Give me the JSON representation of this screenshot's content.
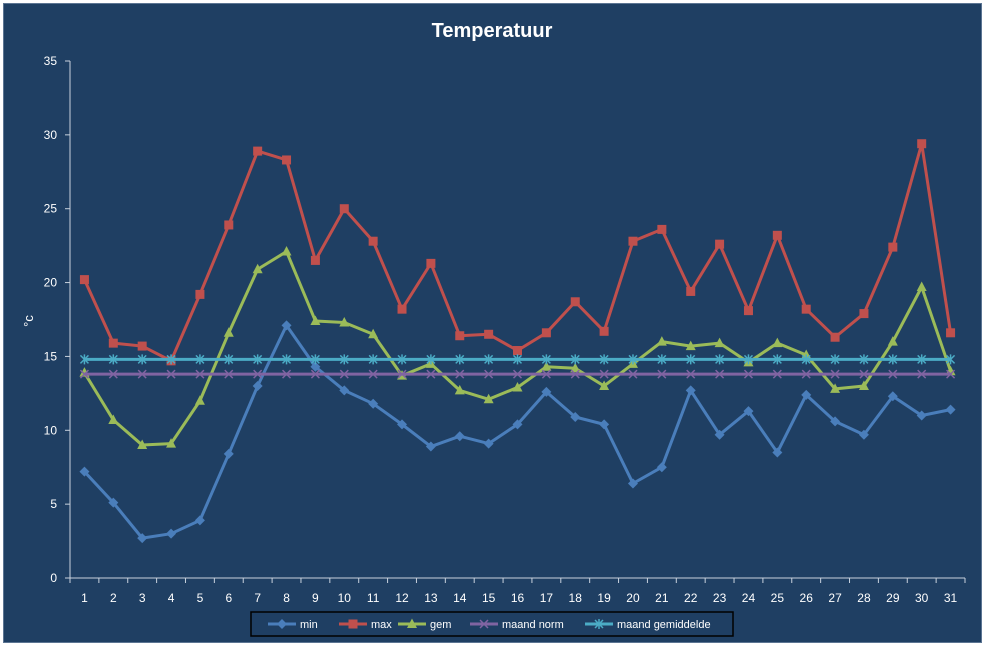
{
  "chart_data": {
    "type": "line",
    "title": "Temperatuur",
    "xlabel": "",
    "ylabel": "°c",
    "ylim": [
      0,
      35
    ],
    "yticks": [
      0,
      5,
      10,
      15,
      20,
      25,
      30,
      35
    ],
    "x": [
      1,
      2,
      3,
      4,
      5,
      6,
      7,
      8,
      9,
      10,
      11,
      12,
      13,
      14,
      15,
      16,
      17,
      18,
      19,
      20,
      21,
      22,
      23,
      24,
      25,
      26,
      27,
      28,
      29,
      30,
      31
    ],
    "grid": false,
    "legend_position": "bottom",
    "series": [
      {
        "name": "min",
        "color": "#4a7ebb",
        "marker": "diamond",
        "values": [
          7.2,
          5.1,
          2.7,
          3.0,
          3.9,
          8.4,
          13.0,
          17.1,
          14.3,
          12.7,
          11.8,
          10.4,
          8.9,
          9.6,
          9.1,
          10.4,
          12.6,
          10.9,
          10.4,
          6.4,
          7.5,
          12.7,
          9.7,
          11.3,
          8.5,
          12.4,
          10.6,
          9.7,
          12.3,
          11.0,
          11.4
        ]
      },
      {
        "name": "max",
        "color": "#c0504d",
        "marker": "square",
        "values": [
          20.2,
          15.9,
          15.7,
          14.7,
          19.2,
          23.9,
          28.9,
          28.3,
          21.5,
          25.0,
          22.8,
          18.2,
          21.3,
          16.4,
          16.5,
          15.4,
          16.6,
          18.7,
          16.7,
          22.8,
          23.6,
          19.4,
          22.6,
          18.1,
          23.2,
          18.2,
          16.3,
          17.9,
          22.4,
          29.4,
          16.6
        ]
      },
      {
        "name": "gem",
        "color": "#9bbb59",
        "marker": "triangle",
        "values": [
          13.9,
          10.7,
          9.0,
          9.1,
          12.0,
          16.6,
          20.9,
          22.1,
          17.4,
          17.3,
          16.5,
          13.7,
          14.5,
          12.7,
          12.1,
          12.9,
          14.3,
          14.2,
          13.0,
          14.5,
          16.0,
          15.7,
          15.9,
          14.6,
          15.9,
          15.1,
          12.8,
          13.0,
          16.0,
          19.7,
          14.0
        ]
      },
      {
        "name": "maand norm",
        "color": "#8064a2",
        "marker": "x",
        "values": [
          13.8,
          13.8,
          13.8,
          13.8,
          13.8,
          13.8,
          13.8,
          13.8,
          13.8,
          13.8,
          13.8,
          13.8,
          13.8,
          13.8,
          13.8,
          13.8,
          13.8,
          13.8,
          13.8,
          13.8,
          13.8,
          13.8,
          13.8,
          13.8,
          13.8,
          13.8,
          13.8,
          13.8,
          13.8,
          13.8,
          13.8
        ]
      },
      {
        "name": "maand gemiddelde",
        "color": "#4bacc6",
        "marker": "star",
        "values": [
          14.8,
          14.8,
          14.8,
          14.8,
          14.8,
          14.8,
          14.8,
          14.8,
          14.8,
          14.8,
          14.8,
          14.8,
          14.8,
          14.8,
          14.8,
          14.8,
          14.8,
          14.8,
          14.8,
          14.8,
          14.8,
          14.8,
          14.8,
          14.8,
          14.8,
          14.8,
          14.8,
          14.8,
          14.8,
          14.8,
          14.8
        ]
      }
    ]
  }
}
